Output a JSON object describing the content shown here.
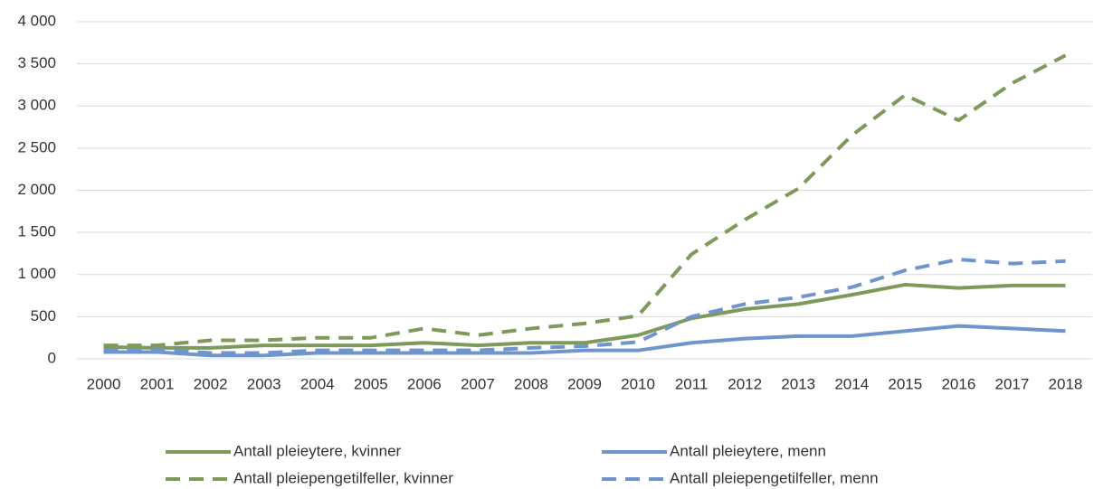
{
  "chart_data": {
    "type": "line",
    "categories": [
      "2000",
      "2001",
      "2002",
      "2003",
      "2004",
      "2005",
      "2006",
      "2007",
      "2008",
      "2009",
      "2010",
      "2011",
      "2012",
      "2013",
      "2014",
      "2015",
      "2016",
      "2017",
      "2018"
    ],
    "series": [
      {
        "name": "Antall pleieytere, kvinner",
        "color": "#7e9a5b",
        "dash": false,
        "values": [
          140,
          130,
          130,
          160,
          160,
          160,
          190,
          160,
          190,
          190,
          280,
          480,
          590,
          650,
          760,
          880,
          840,
          870,
          870
        ]
      },
      {
        "name": "Antall pleieytere, menn",
        "color": "#6f95cc",
        "dash": false,
        "values": [
          80,
          80,
          40,
          40,
          70,
          70,
          70,
          70,
          70,
          100,
          100,
          190,
          240,
          270,
          270,
          330,
          390,
          360,
          330
        ]
      },
      {
        "name": "Antall pleiepengetilfeller, kvinner",
        "color": "#7e9a5b",
        "dash": true,
        "values": [
          160,
          160,
          220,
          220,
          250,
          250,
          360,
          280,
          360,
          420,
          510,
          1240,
          1650,
          2020,
          2650,
          3130,
          2830,
          3270,
          3600
        ]
      },
      {
        "name": "Antall pleiepengetilfeller, menn",
        "color": "#6f95cc",
        "dash": true,
        "values": [
          100,
          110,
          70,
          70,
          100,
          100,
          100,
          100,
          130,
          150,
          200,
          500,
          650,
          730,
          850,
          1050,
          1180,
          1130,
          1160
        ]
      }
    ],
    "ylim": [
      0,
      4000
    ],
    "yticks": [
      0,
      500,
      {
        "value": 1000,
        "label": "1 000"
      },
      {
        "value": 1500,
        "label": "1 500"
      },
      {
        "value": 2000,
        "label": "2 000"
      },
      {
        "value": 2500,
        "label": "2 500"
      },
      {
        "value": 3000,
        "label": "3 000"
      },
      {
        "value": 3500,
        "label": "3 500"
      },
      {
        "value": 4000,
        "label": "4 000"
      }
    ],
    "grid": true,
    "legend": "bottom"
  }
}
